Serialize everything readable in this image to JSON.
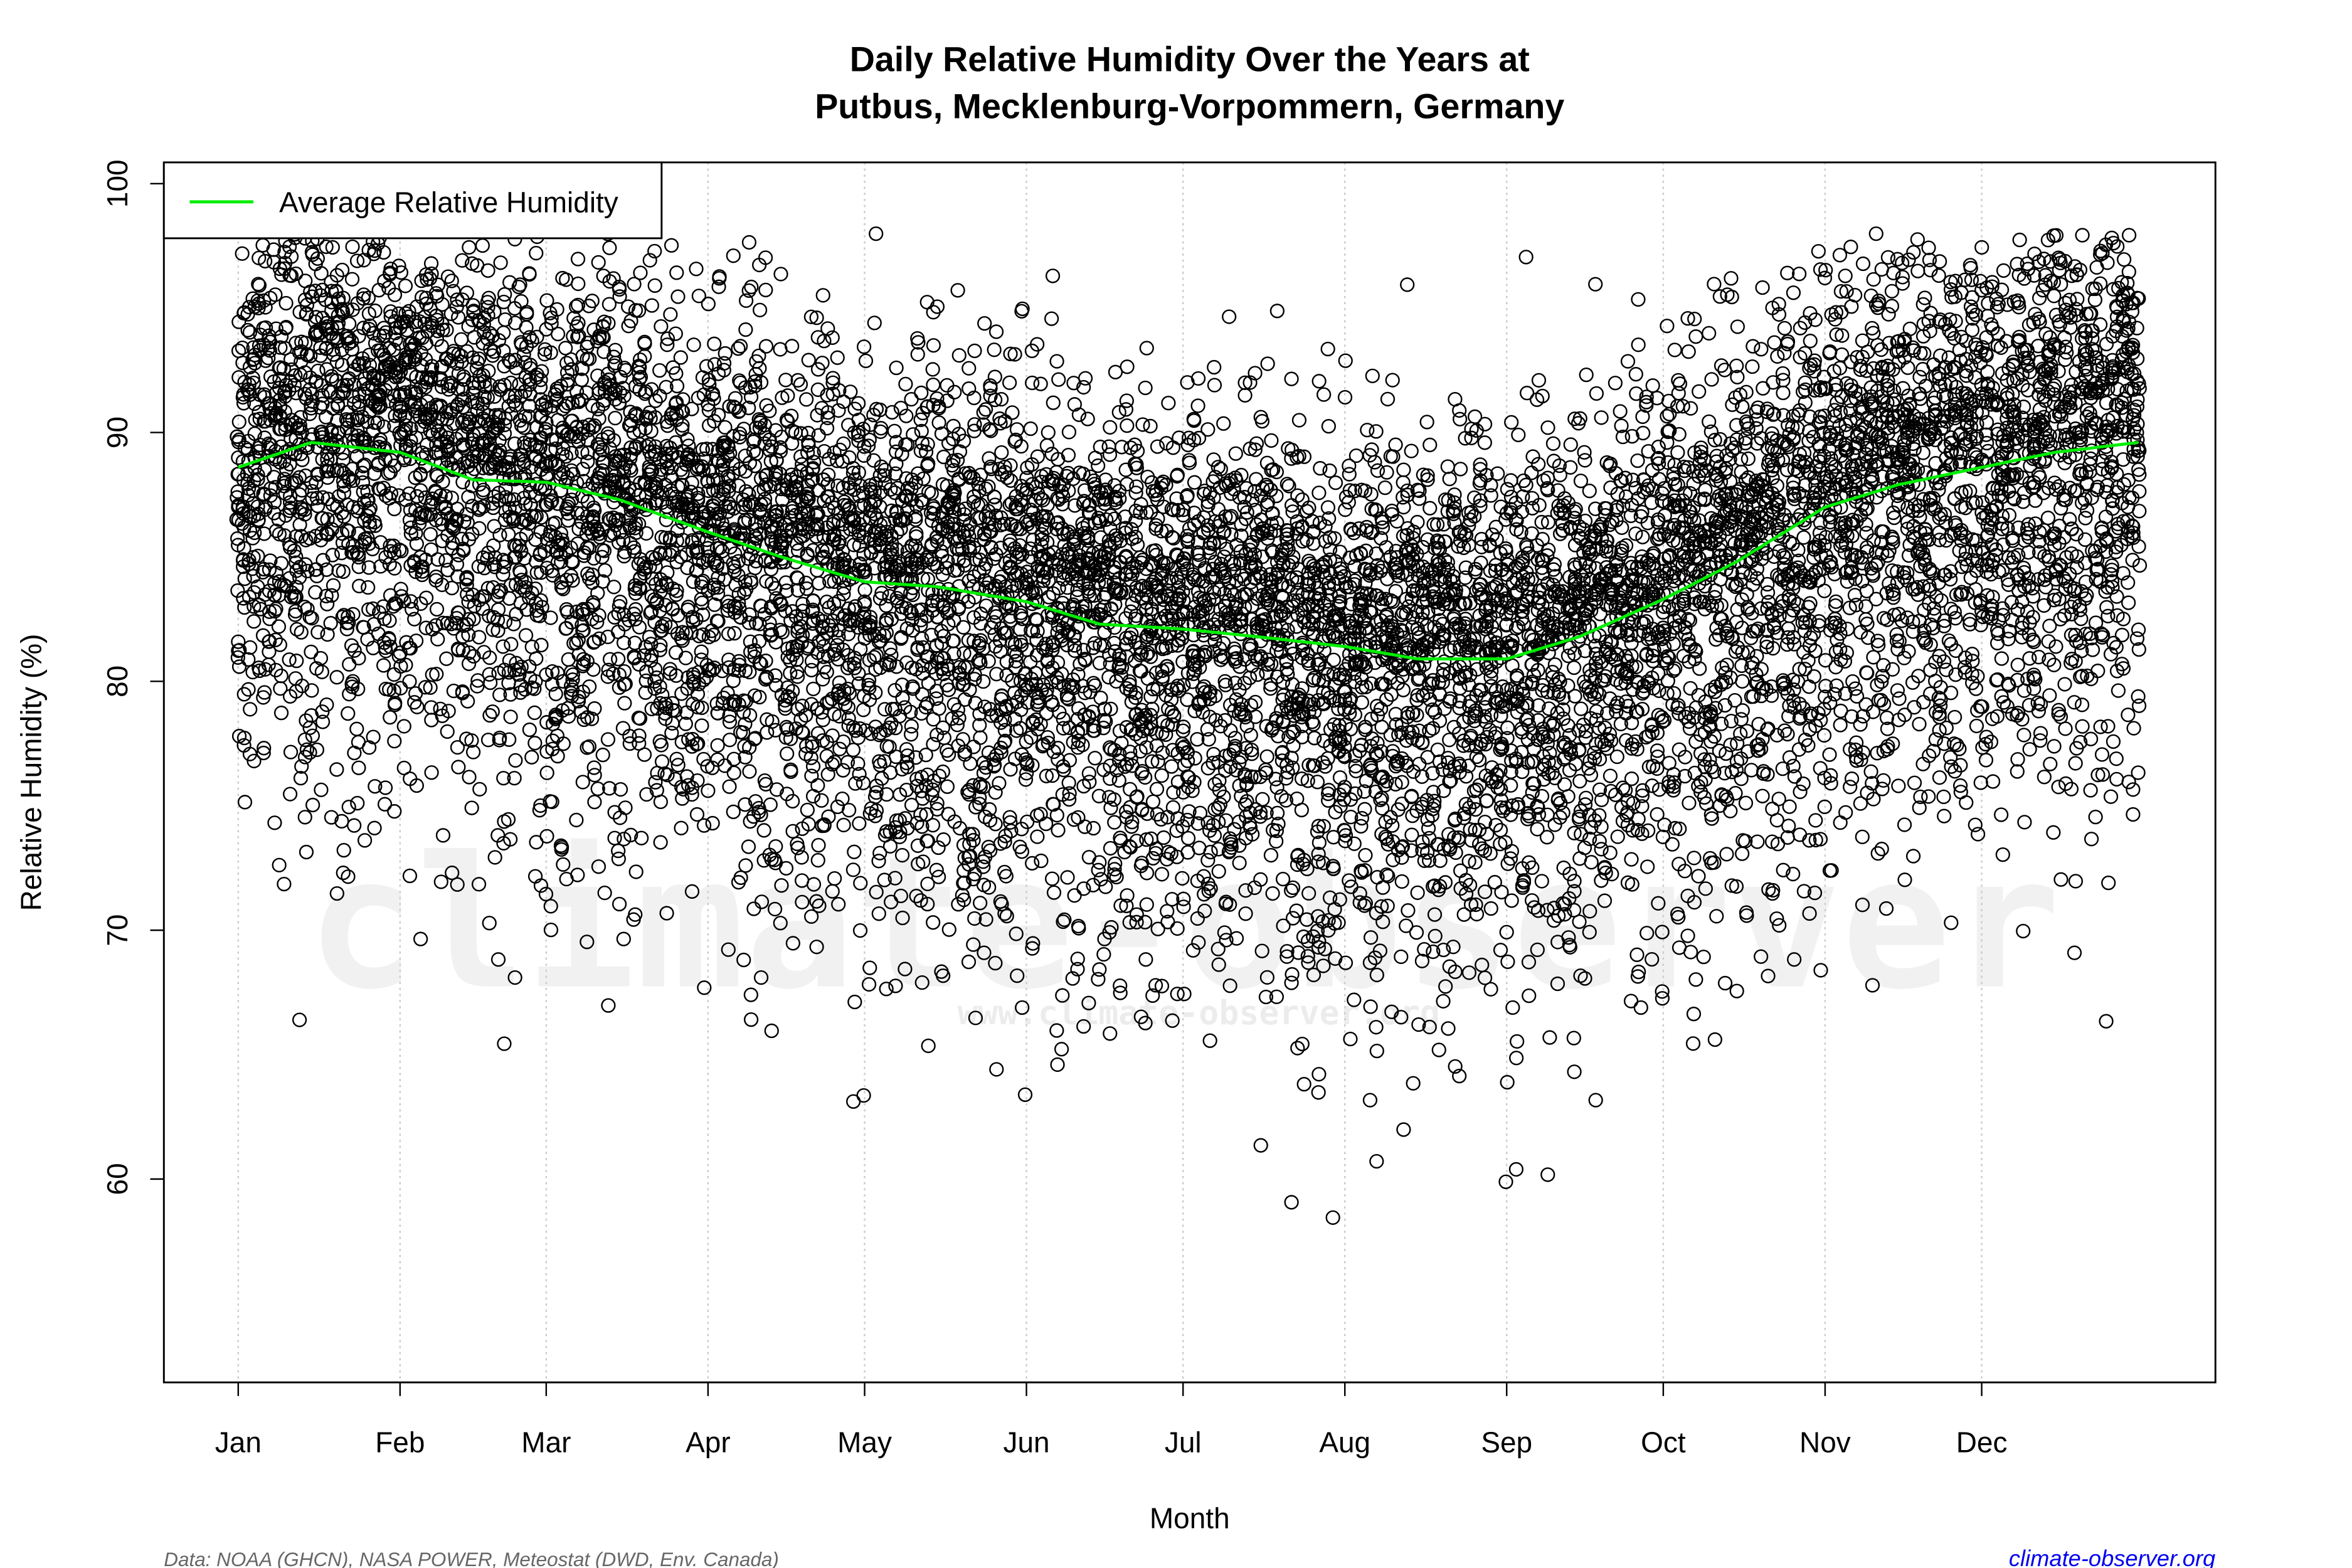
{
  "chart_data": {
    "type": "scatter",
    "title": "Daily Relative Humidity Over the Years at",
    "subtitle": "Putbus, Mecklenburg-Vorpommern, Germany",
    "xlabel": "Month",
    "ylabel": "Relative Humidity  (%)",
    "x_ticks": [
      "Jan",
      "Feb",
      "Mar",
      "Apr",
      "May",
      "Jun",
      "Jul",
      "Aug",
      "Sep",
      "Oct",
      "Nov",
      "Dec"
    ],
    "x_tick_day_of_year": [
      1,
      32,
      60,
      91,
      121,
      152,
      182,
      213,
      244,
      274,
      305,
      335
    ],
    "y_ticks": [
      60,
      70,
      80,
      90,
      100
    ],
    "ylim": [
      51.8,
      100.8
    ],
    "xlim_day_of_year": [
      -13,
      380
    ],
    "grid": "vertical dotted at month starts",
    "legend": {
      "position": "top-left",
      "entries": [
        "Average Relative Humidity"
      ]
    },
    "series": [
      {
        "name": "Average Relative Humidity",
        "type": "line",
        "color": "#00ee00",
        "x_day_of_year": [
          1,
          15,
          32,
          46,
          60,
          74,
          91,
          105,
          121,
          135,
          152,
          166,
          182,
          196,
          213,
          227,
          244,
          258,
          274,
          288,
          305,
          319,
          335,
          349,
          365
        ],
        "y": [
          88.6,
          89.6,
          89.2,
          88.1,
          88.0,
          87.3,
          86.0,
          85.0,
          84.0,
          83.8,
          83.2,
          82.3,
          82.1,
          81.8,
          81.4,
          80.9,
          80.9,
          81.8,
          83.3,
          84.8,
          87.0,
          87.9,
          88.6,
          89.2,
          89.6
        ]
      },
      {
        "type": "scatter",
        "marker": "open-circle",
        "color": "#000000",
        "range_observed": [
          53.5,
          99
        ]
      }
    ],
    "watermark": [
      "climate-observer",
      "www.climate-observer.org"
    ]
  },
  "footer": {
    "source": "Data: NOAA (GHCN), NASA POWER, Meteostat (DWD, Env. Canada)",
    "link": "climate-observer.org"
  }
}
